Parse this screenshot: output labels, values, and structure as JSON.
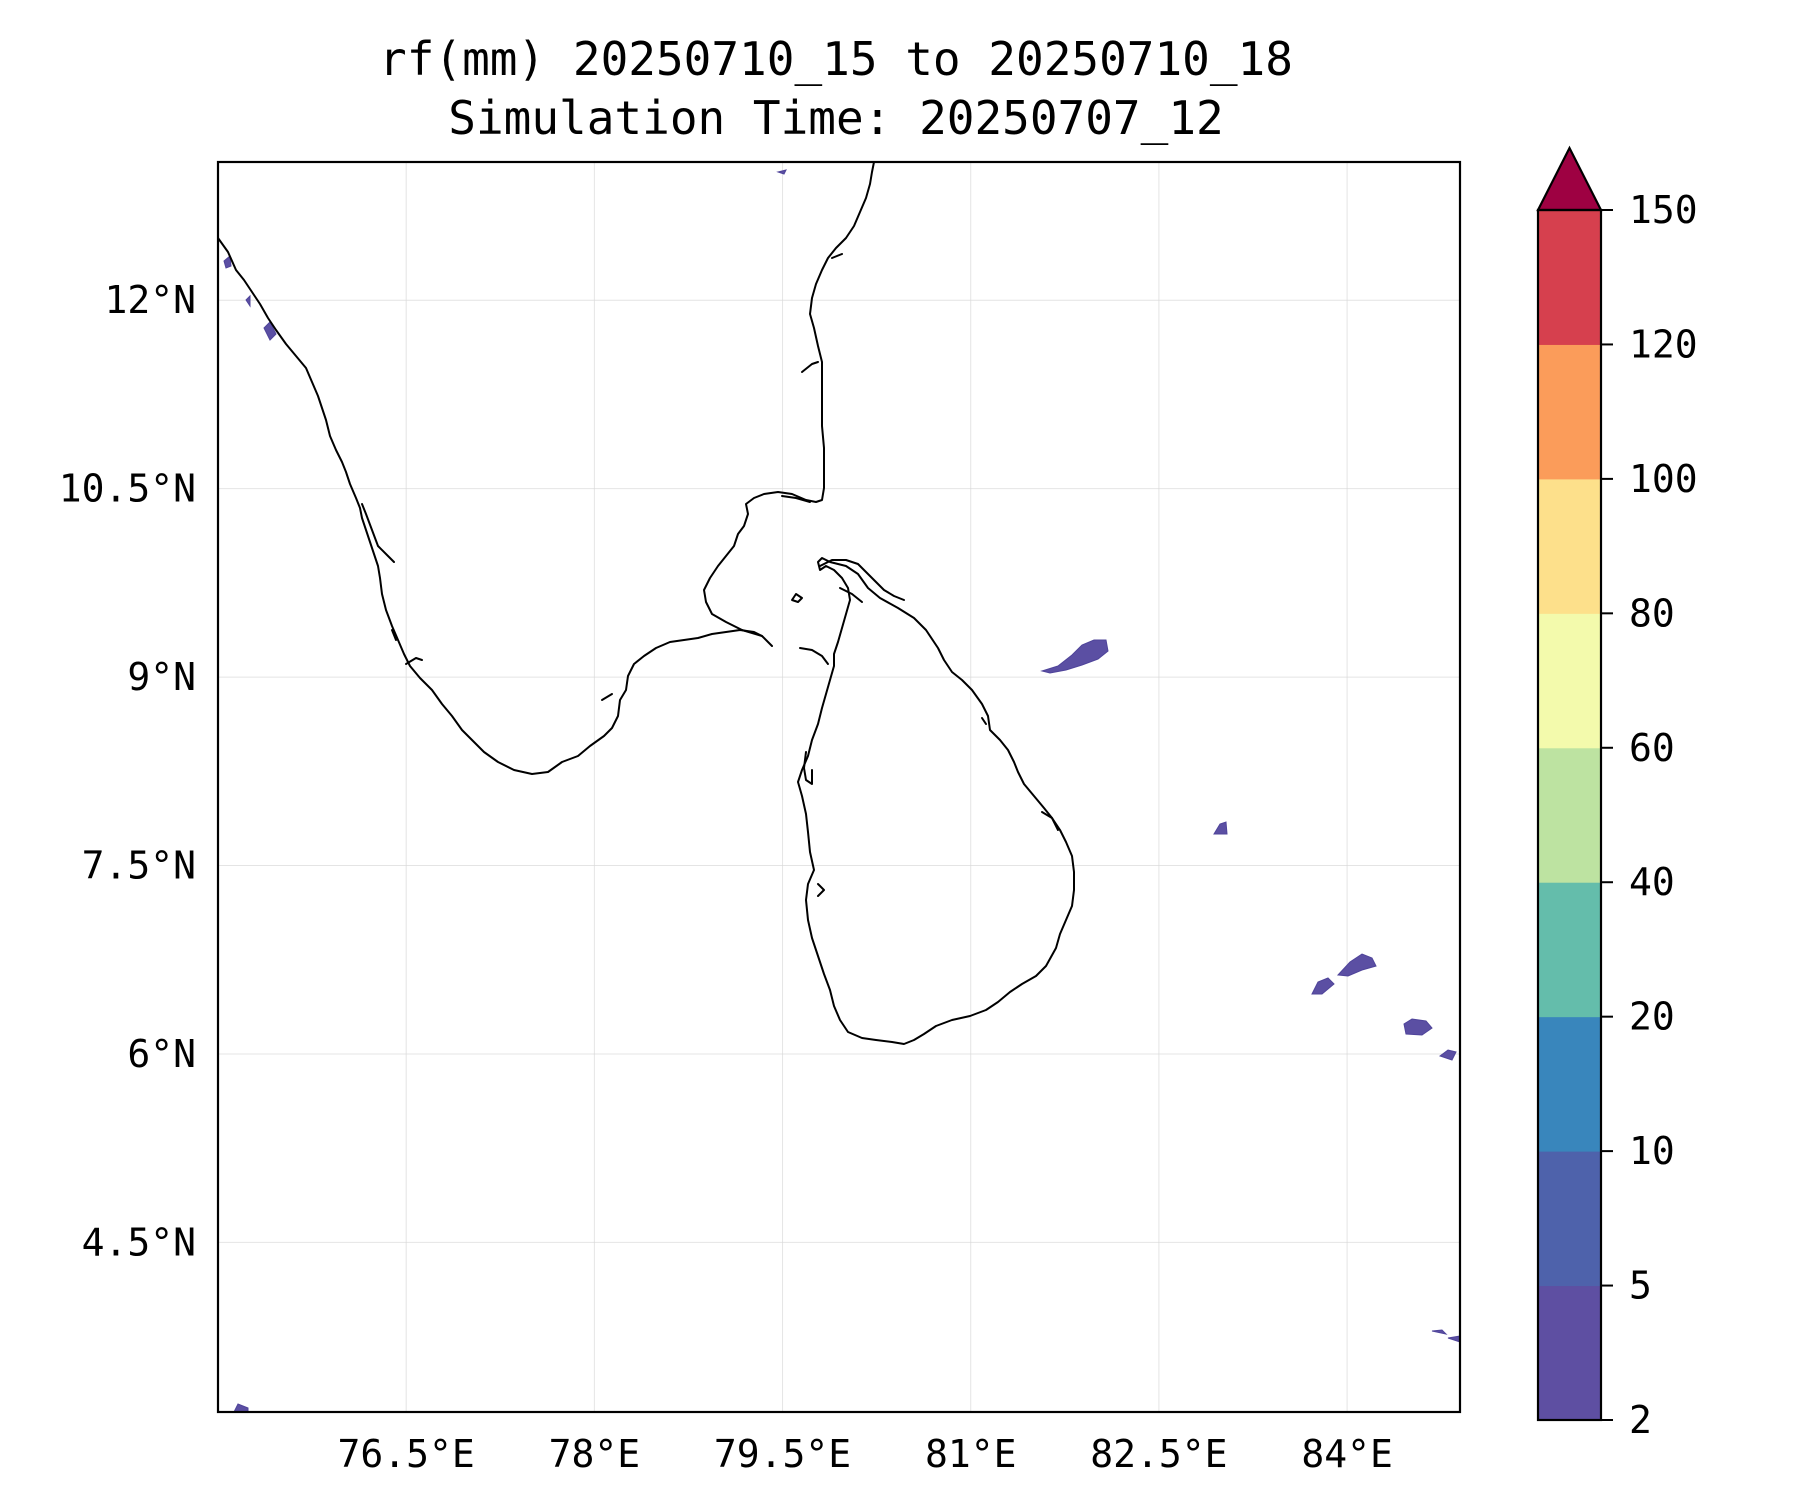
{
  "title": {
    "line1": "rf(mm) 20250710_15 to 20250710_18",
    "line2": "Simulation Time: 20250707_12"
  },
  "map": {
    "lon_range": [
      75,
      84.9
    ],
    "lat_range": [
      3.15,
      13.1
    ],
    "x_ticks": [
      {
        "value": 76.5,
        "label": "76.5°E"
      },
      {
        "value": 78,
        "label": "78°E"
      },
      {
        "value": 79.5,
        "label": "79.5°E"
      },
      {
        "value": 81,
        "label": "81°E"
      },
      {
        "value": 82.5,
        "label": "82.5°E"
      },
      {
        "value": 84,
        "label": "84°E"
      }
    ],
    "y_ticks": [
      {
        "value": 12,
        "label": "12°N"
      },
      {
        "value": 10.5,
        "label": "10.5°N"
      },
      {
        "value": 9,
        "label": "9°N"
      },
      {
        "value": 7.5,
        "label": "7.5°N"
      },
      {
        "value": 6,
        "label": "6°N"
      },
      {
        "value": 4.5,
        "label": "4.5°N"
      }
    ],
    "gridlines": true,
    "rain_category": "2-5 mm",
    "rain_color": "#5e4fa2"
  },
  "colorbar": {
    "extend": "max",
    "levels": [
      {
        "label": "2",
        "value": 2,
        "color": "#5e4fa2"
      },
      {
        "label": "5",
        "value": 5,
        "color": "#4e62ab"
      },
      {
        "label": "10",
        "value": 10,
        "color": "#3986bc"
      },
      {
        "label": "20",
        "value": 20,
        "color": "#64bdab"
      },
      {
        "label": "40",
        "value": 40,
        "color": "#bde3a1"
      },
      {
        "label": "60",
        "value": 60,
        "color": "#f3faac"
      },
      {
        "label": "80",
        "value": 80,
        "color": "#fde08b"
      },
      {
        "label": "100",
        "value": 100,
        "color": "#fb9c5a"
      },
      {
        "label": "120",
        "value": 120,
        "color": "#d6404e"
      },
      {
        "label": "150",
        "value": 150,
        "color": "#9e0142"
      }
    ]
  }
}
